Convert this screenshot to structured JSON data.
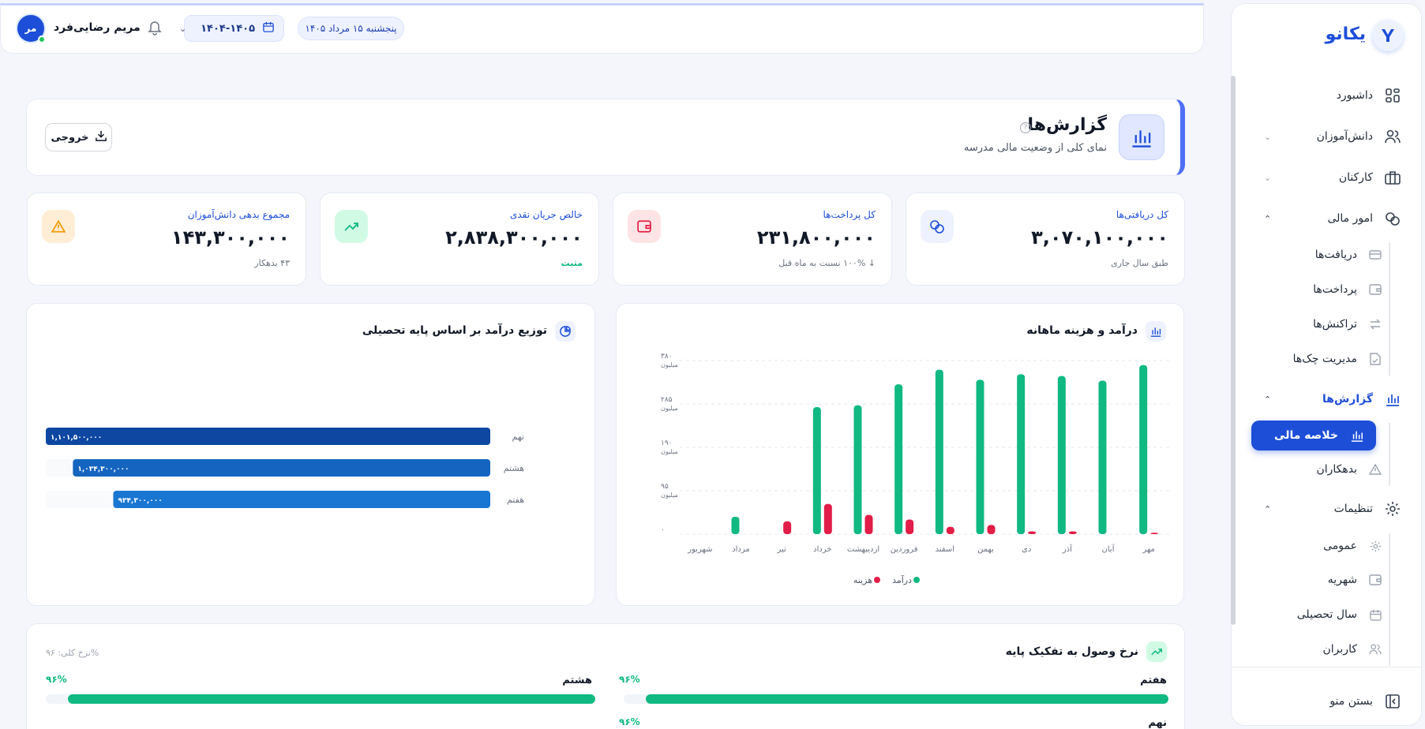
{
  "sidebar": {
    "brand": "یکانو",
    "items": [
      {
        "label": "داشبورد"
      },
      {
        "label": "دانش‌آموزان"
      },
      {
        "label": "کارکنان"
      },
      {
        "label": "امور مالی"
      },
      {
        "label": "گزارش‌ها"
      },
      {
        "label": "تنظیمات"
      }
    ],
    "finance_sub": [
      {
        "label": "دریافت‌ها"
      },
      {
        "label": "پرداخت‌ها"
      },
      {
        "label": "تراکنش‌ها"
      },
      {
        "label": "مدیریت چک‌ها"
      }
    ],
    "reports_sub": [
      {
        "label": "خلاصه مالی"
      },
      {
        "label": "بدهکاران"
      }
    ],
    "settings_sub": [
      {
        "label": "عمومی"
      },
      {
        "label": "شهریه"
      },
      {
        "label": "سال تحصیلی"
      },
      {
        "label": "کاربران"
      }
    ],
    "collapse_label": "بستن منو"
  },
  "topbar": {
    "date": "پنجشنبه ۱۵ مرداد ۱۴۰۵",
    "year": "۱۴۰۴-۱۴۰۵",
    "user_name": "مریم رضایی‌فرد",
    "avatar": "مر"
  },
  "header": {
    "title": "گزارش‌ها",
    "subtitle": "نمای کلی از وضعیت مالی مدرسه",
    "export_label": "خروجی"
  },
  "stats": [
    {
      "label": "کل دریافتی‌ها",
      "value": "۳,۰۷۰,۱۰۰,۰۰۰",
      "note": "طبق سال جاری"
    },
    {
      "label": "کل پرداخت‌ها",
      "value": "۲۳۱,۸۰۰,۰۰۰",
      "note": "↓ ۱۰۰% نسبت به ماه قبل"
    },
    {
      "label": "خالص جریان نقدی",
      "value": "۲,۸۳۸,۳۰۰,۰۰۰",
      "note": "مثبت"
    },
    {
      "label": "مجموع بدهی دانش‌آموزان",
      "value": "۱۴۳,۳۰۰,۰۰۰",
      "note": "۴۳ بدهکار"
    }
  ],
  "colors": {
    "accent": "#1d4ed8",
    "income": "#10b981",
    "expense": "#e11d48"
  },
  "chart_data": [
    {
      "type": "bar",
      "title": "درآمد و هزینه ماهانه",
      "categories": [
        "مهر",
        "آبان",
        "آذر",
        "دی",
        "بهمن",
        "اسفند",
        "فروردین",
        "اردیبهشت",
        "خرداد",
        "تیر",
        "مرداد",
        "شهریور"
      ],
      "y_ticks": [
        "۰",
        "۹۵ میلیون",
        "۱۹۰ میلیون",
        "۲۸۵ میلیون",
        "۳۸۰ میلیون"
      ],
      "ylim": [
        0,
        380
      ],
      "series": [
        {
          "name": "درآمد",
          "values": [
            370,
            336,
            346,
            350,
            338,
            360,
            328,
            282,
            278,
            0,
            38,
            0
          ]
        },
        {
          "name": "هزینه",
          "values": [
            3,
            0,
            6,
            6,
            20,
            16,
            32,
            42,
            66,
            28,
            0,
            0
          ]
        }
      ],
      "legend": [
        "درآمد",
        "هزینه"
      ]
    },
    {
      "type": "bar",
      "orientation": "horizontal",
      "title": "توزیع درآمد بر اساس پایه تحصیلی",
      "categories": [
        "نهم",
        "هشتم",
        "هفتم"
      ],
      "values": [
        1101500000,
        1034300000,
        934300000
      ],
      "labels": [
        "۱,۱۰۱,۵۰۰,۰۰۰",
        "۱,۰۳۴,۳۰۰,۰۰۰",
        "۹۳۴,۳۰۰,۰۰۰"
      ]
    }
  ],
  "rates": {
    "title": "نرخ وصول به تفکیک پایه",
    "overall": "نرخ کلی: ۹۶%",
    "items": [
      {
        "name": "هفتم",
        "pct": "۹۶%",
        "value": 96
      },
      {
        "name": "هشتم",
        "pct": "۹۶%",
        "value": 96
      },
      {
        "name": "نهم",
        "pct": "۹۶%",
        "value": 96
      }
    ]
  }
}
